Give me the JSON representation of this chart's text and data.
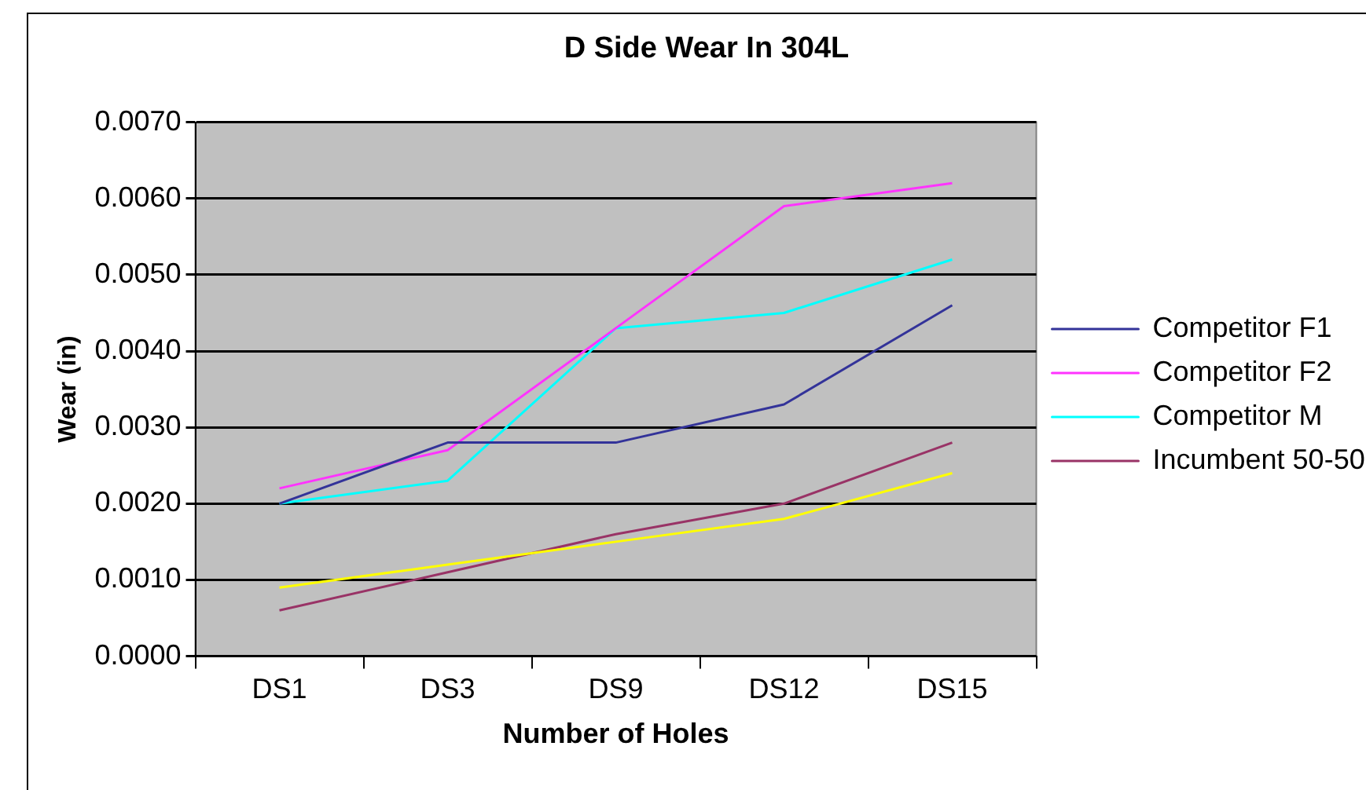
{
  "chart_data": {
    "type": "line",
    "title": "D Side Wear In 304L",
    "xlabel": "Number of Holes",
    "ylabel": "Wear (in)",
    "categories": [
      "DS1",
      "DS3",
      "DS9",
      "DS12",
      "DS15"
    ],
    "series": [
      {
        "name": "Competitor F1",
        "color": "#333399",
        "values": [
          0.002,
          0.0028,
          0.0028,
          0.0033,
          0.0046
        ]
      },
      {
        "name": "Competitor F2",
        "color": "#ff33ff",
        "values": [
          0.0022,
          0.0027,
          0.0043,
          0.0059,
          0.0062
        ]
      },
      {
        "color": "#ffff00",
        "values": [
          0.0009,
          0.0012,
          0.0015,
          0.0018,
          0.0024
        ]
      },
      {
        "name": "Competitor M",
        "color": "#00ffff",
        "values": [
          0.002,
          0.0023,
          0.0043,
          0.0045,
          0.0052
        ]
      },
      {
        "name": "Incumbent 50-50",
        "color": "#993366",
        "values": [
          0.0006,
          0.0011,
          0.0016,
          0.002,
          0.0028
        ]
      }
    ],
    "ylim": [
      0,
      0.007
    ],
    "yticks": [
      {
        "value": 0,
        "label": "0.0000"
      },
      {
        "value": 0.001,
        "label": "0.0010"
      },
      {
        "value": 0.002,
        "label": "0.0020"
      },
      {
        "value": 0.003,
        "label": "0.0030"
      },
      {
        "value": 0.004,
        "label": "0.0040"
      },
      {
        "value": 0.005,
        "label": "0.0050"
      },
      {
        "value": 0.006,
        "label": "0.0060"
      },
      {
        "value": 0.007,
        "label": "0.0070"
      }
    ],
    "grid": "y",
    "legend": "right",
    "marker": "none",
    "line_style": "solid"
  }
}
